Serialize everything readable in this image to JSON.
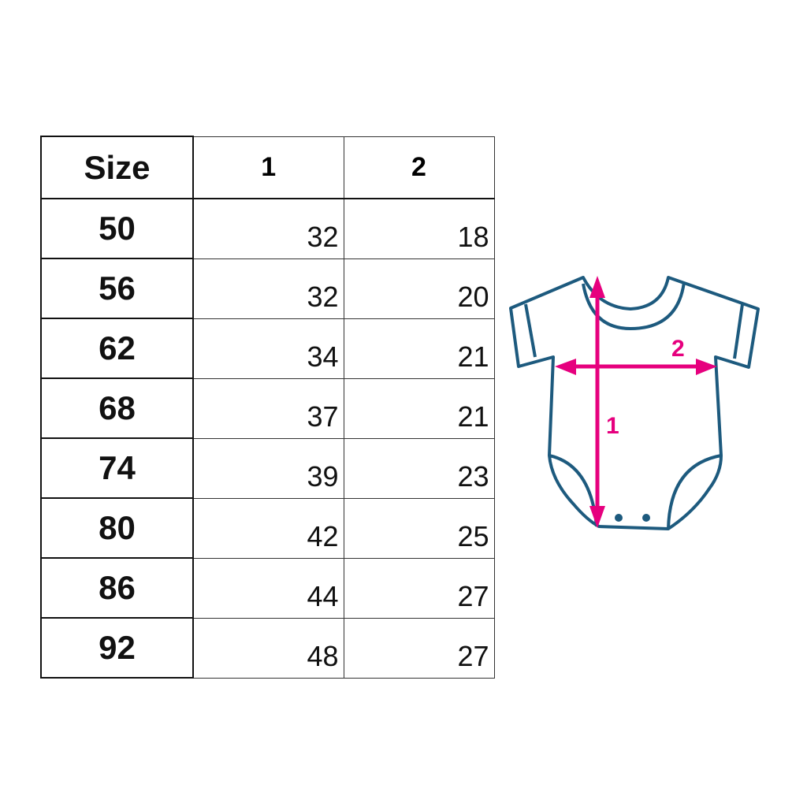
{
  "table": {
    "headers": [
      "Size",
      "1",
      "2"
    ],
    "rows": [
      {
        "size": "50",
        "m1": "32",
        "m2": "18"
      },
      {
        "size": "56",
        "m1": "32",
        "m2": "20"
      },
      {
        "size": "62",
        "m1": "34",
        "m2": "21"
      },
      {
        "size": "68",
        "m1": "37",
        "m2": "21"
      },
      {
        "size": "74",
        "m1": "39",
        "m2": "23"
      },
      {
        "size": "80",
        "m1": "42",
        "m2": "25"
      },
      {
        "size": "86",
        "m1": "44",
        "m2": "27"
      },
      {
        "size": "92",
        "m1": "48",
        "m2": "27"
      }
    ]
  },
  "diagram": {
    "label_1": "1",
    "label_2": "2",
    "outline_color": "#1d5a7e",
    "arrow_color": "#e6007e"
  }
}
